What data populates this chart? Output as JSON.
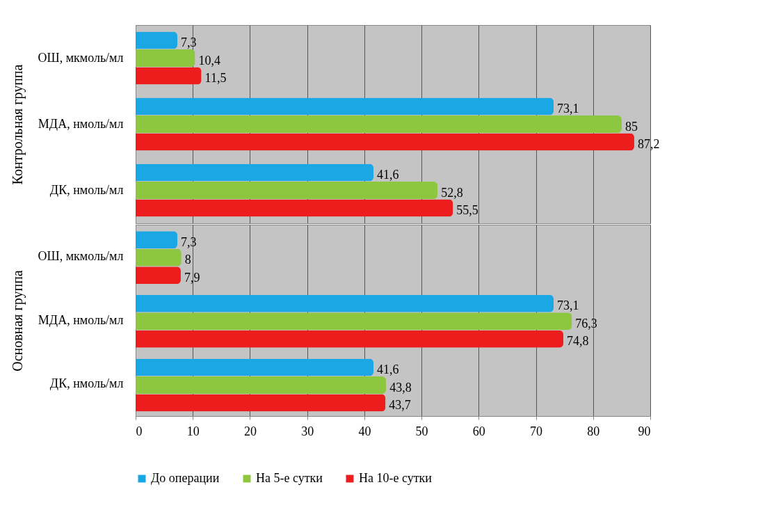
{
  "chart_data": [
    {
      "type": "bar",
      "orientation": "horizontal",
      "ylabel": "Контрольная группа",
      "categories": [
        "ОШ, мкмоль/мл",
        "МДА, нмоль/мл",
        "ДК, нмоль/мл"
      ],
      "series": [
        {
          "color": "#1ba7e3",
          "values": [
            7.3,
            73.1,
            41.6
          ],
          "value_labels": [
            "7,3",
            "73,1",
            "41,6"
          ]
        },
        {
          "color": "#8dc63f",
          "values": [
            10.4,
            85,
            52.8
          ],
          "value_labels": [
            "10,4",
            "85",
            "52,8"
          ]
        },
        {
          "color": "#ee1d1d",
          "values": [
            11.5,
            87.2,
            55.5
          ],
          "value_labels": [
            "11,5",
            "87,2",
            "55,5"
          ]
        }
      ],
      "xlim": [
        0,
        90
      ],
      "xticks": [
        0,
        10,
        20,
        30,
        40,
        50,
        60,
        70,
        80,
        90
      ],
      "grid": "x",
      "tick_labels": "y",
      "legend": false
    },
    {
      "type": "bar",
      "orientation": "horizontal",
      "ylabel": "Основная группа",
      "categories": [
        "ОШ, мкмоль/мл",
        "МДА, нмоль/мл",
        "ДК, нмоль/мл"
      ],
      "series": [
        {
          "name": "До операции",
          "color": "#1ba7e3",
          "values": [
            7.3,
            73.1,
            41.6
          ],
          "value_labels": [
            "7,3",
            "73,1",
            "41,6"
          ]
        },
        {
          "name": "На 5-е сутки",
          "color": "#8dc63f",
          "values": [
            8,
            76.3,
            43.8
          ],
          "value_labels": [
            "8",
            "76,3",
            "43,8"
          ]
        },
        {
          "name": "На 10-е сутки",
          "color": "#ee1d1d",
          "values": [
            7.9,
            74.8,
            43.7
          ],
          "value_labels": [
            "7,9",
            "74,8",
            "43,7"
          ]
        }
      ],
      "xlim": [
        0,
        90
      ],
      "xticks": [
        0,
        10,
        20,
        30,
        40,
        50,
        60,
        70,
        80,
        90
      ],
      "grid": "x",
      "legend": "bottom"
    }
  ]
}
